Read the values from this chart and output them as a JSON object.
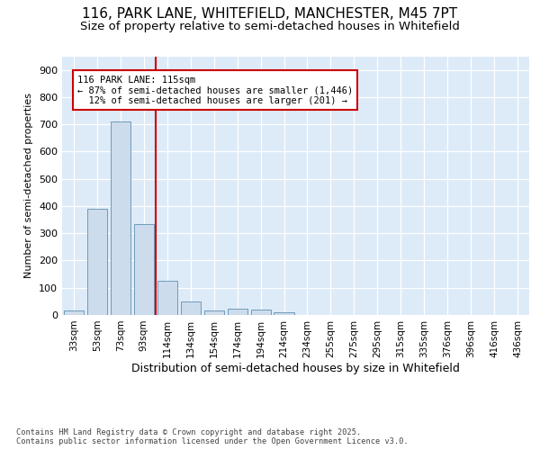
{
  "title1": "116, PARK LANE, WHITEFIELD, MANCHESTER, M45 7PT",
  "title2": "Size of property relative to semi-detached houses in Whitefield",
  "xlabel": "Distribution of semi-detached houses by size in Whitefield",
  "ylabel": "Number of semi-detached properties",
  "categories": [
    "33sqm",
    "53sqm",
    "73sqm",
    "93sqm",
    "114sqm",
    "134sqm",
    "154sqm",
    "174sqm",
    "194sqm",
    "214sqm",
    "234sqm",
    "255sqm",
    "275sqm",
    "295sqm",
    "315sqm",
    "335sqm",
    "376sqm",
    "396sqm",
    "416sqm",
    "436sqm"
  ],
  "values": [
    17,
    390,
    710,
    335,
    125,
    50,
    17,
    22,
    20,
    10,
    1,
    0,
    0,
    0,
    0,
    0,
    0,
    0,
    0,
    0
  ],
  "bar_color": "#ccdcec",
  "bar_edge_color": "#6090b0",
  "vline_color": "#cc0000",
  "annotation_line1": "116 PARK LANE: 115sqm",
  "annotation_line2": "← 87% of semi-detached houses are smaller (1,446)",
  "annotation_line3": "  12% of semi-detached houses are larger (201) →",
  "annotation_box_color": "#cc0000",
  "ylim": [
    0,
    950
  ],
  "yticks": [
    0,
    100,
    200,
    300,
    400,
    500,
    600,
    700,
    800,
    900
  ],
  "bg_color": "#ddeaf8",
  "footer": "Contains HM Land Registry data © Crown copyright and database right 2025.\nContains public sector information licensed under the Open Government Licence v3.0.",
  "title1_fontsize": 11,
  "title2_fontsize": 9.5,
  "xlabel_fontsize": 9,
  "ylabel_fontsize": 8
}
